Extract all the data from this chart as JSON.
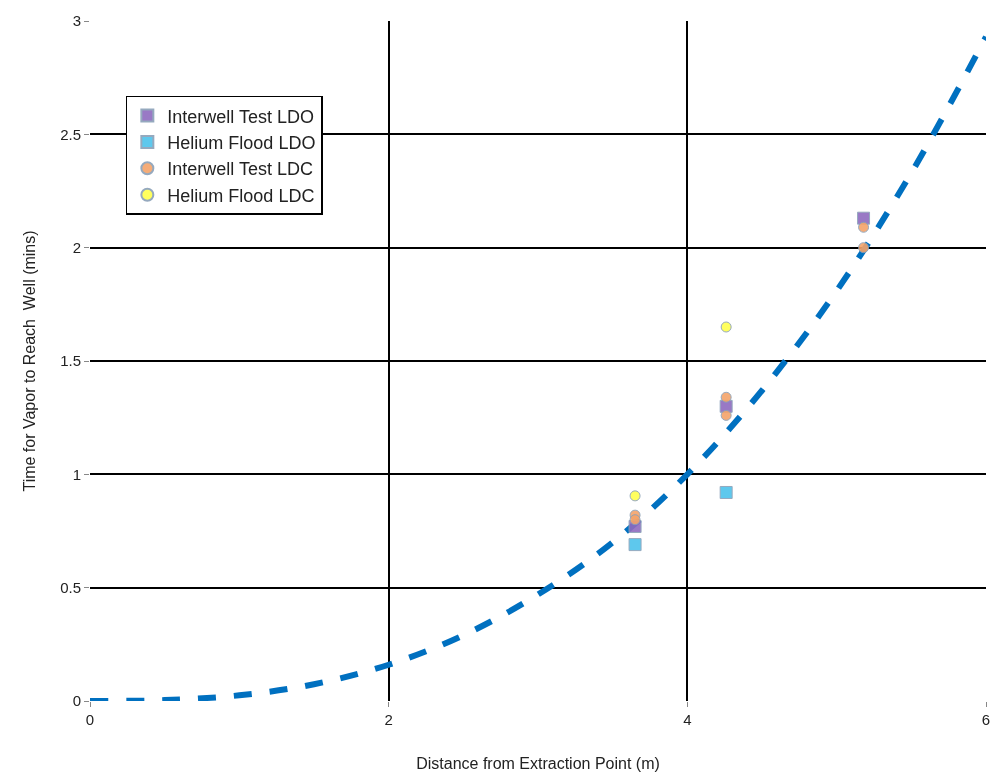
{
  "chart_data": {
    "type": "scatter",
    "xlabel": "Distance from Extraction Point (m)",
    "ylabel": "Time for Vapor to Reach  Well (mins)",
    "xlim": [
      0,
      6
    ],
    "xticks": [
      0,
      2,
      4,
      6
    ],
    "ylim": [
      0,
      3
    ],
    "yticks": [
      0,
      0.5,
      1,
      1.5,
      2,
      2.5,
      3
    ],
    "grid": true,
    "legend": "top left",
    "series": [
      {
        "name": "Interwell Test LDO",
        "color": "#8e6bbf",
        "marker": "square",
        "x": [
          3.65,
          4.26,
          5.18
        ],
        "values": [
          0.77,
          1.3,
          2.13
        ]
      },
      {
        "name": "Helium Flood LDO",
        "color": "#4dc3ec",
        "marker": "square",
        "x": [
          3.65,
          4.26
        ],
        "values": [
          0.69,
          0.92
        ]
      },
      {
        "name": "Interwell Test LDC",
        "color": "#f4a46a",
        "marker": "circle",
        "x": [
          3.65,
          3.65,
          4.26,
          4.26,
          5.18,
          5.18
        ],
        "values": [
          0.82,
          0.8,
          1.34,
          1.26,
          2.09,
          2.0
        ]
      },
      {
        "name": "Helium Flood LDC",
        "color": "#ffff4d",
        "marker": "circle",
        "x": [
          3.65,
          4.26
        ],
        "values": [
          0.905,
          1.65
        ]
      },
      {
        "type": "line",
        "color": "#0070c0",
        "marker": "none",
        "line_style": "dashed",
        "x": [
          0,
          0.5,
          1,
          1.5,
          2,
          2.5,
          3,
          3.5,
          4,
          4.5,
          5,
          5.5,
          6
        ],
        "values": [
          0,
          0.004,
          0.025,
          0.074,
          0.16,
          0.29,
          0.47,
          0.7,
          1.0,
          1.37,
          1.81,
          2.33,
          2.93
        ]
      }
    ]
  }
}
